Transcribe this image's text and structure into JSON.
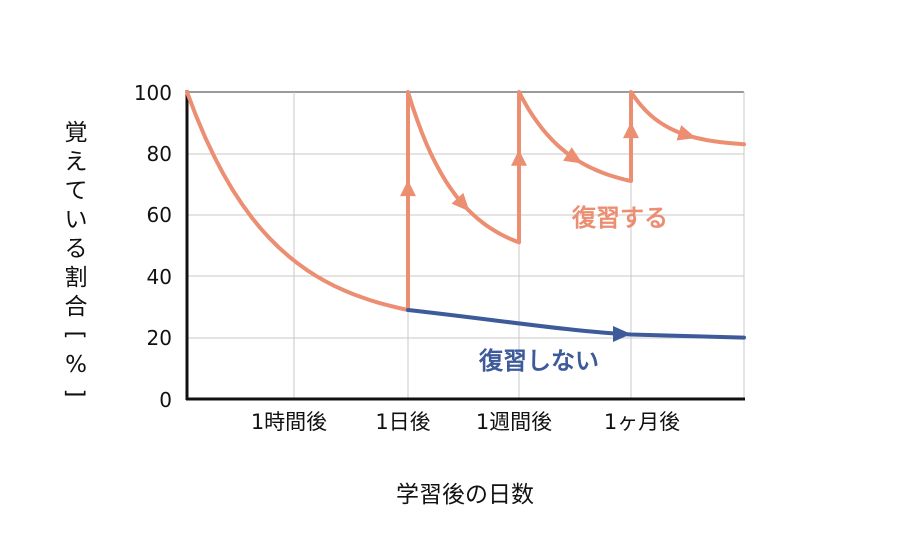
{
  "chart_data": {
    "type": "line",
    "xlabel": "学習後の日数",
    "ylabel": "覚えている割合[%]",
    "ylim": [
      0,
      100
    ],
    "yticks": [
      "0",
      "20",
      "40",
      "60",
      "80",
      "100"
    ],
    "xticks": [
      "1時間後",
      "1日後",
      "1週間後",
      "1ヶ月後"
    ],
    "grid": true,
    "series": [
      {
        "name": "復習する",
        "color": "#ec8e72",
        "points": [
          [
            "開始",
            100
          ],
          [
            "1日後",
            29
          ],
          [
            "1日後",
            100
          ],
          [
            "1週間後",
            51
          ],
          [
            "1週間後",
            100
          ],
          [
            "1ヶ月後",
            71
          ],
          [
            "1ヶ月後",
            100
          ],
          [
            "終了",
            83
          ]
        ]
      },
      {
        "name": "復習しない",
        "color": "#3d5a9a",
        "points": [
          [
            "1日後",
            29
          ],
          [
            "1週間後",
            24
          ],
          [
            "1ヶ月後",
            21
          ],
          [
            "終了",
            20
          ]
        ]
      }
    ]
  }
}
